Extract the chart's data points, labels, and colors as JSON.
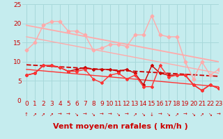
{
  "bg_color": "#c5ecee",
  "grid_color": "#a8d8da",
  "xlabel": "Vent moyen/en rafales ( km/h )",
  "xlim": [
    -0.5,
    23
  ],
  "ylim": [
    0,
    25
  ],
  "yticks": [
    0,
    5,
    10,
    15,
    20,
    25
  ],
  "xticks": [
    0,
    1,
    2,
    3,
    4,
    5,
    6,
    7,
    8,
    9,
    10,
    11,
    12,
    13,
    14,
    15,
    16,
    17,
    18,
    19,
    20,
    21,
    22,
    23
  ],
  "x": [
    0,
    1,
    2,
    3,
    4,
    5,
    6,
    7,
    8,
    9,
    10,
    11,
    12,
    13,
    14,
    15,
    16,
    17,
    18,
    19,
    20,
    21,
    22,
    23
  ],
  "line1_y": [
    13,
    15,
    19.5,
    20.5,
    20.5,
    18,
    18,
    17,
    13,
    13.5,
    14.5,
    14.5,
    14,
    17,
    17,
    22,
    17,
    16.5,
    16.5,
    10,
    5.5,
    10,
    6.5,
    8
  ],
  "line1_color": "#ffaaaa",
  "line1_lw": 1.0,
  "line1_ms": 2.5,
  "trend1_x": [
    0,
    23
  ],
  "trend1_y": [
    19.5,
    10.0
  ],
  "trend1_color": "#ffaaaa",
  "trend1_lw": 1.3,
  "trend2_x": [
    0,
    23
  ],
  "trend2_y": [
    16.5,
    7.0
  ],
  "trend2_color": "#ffaaaa",
  "trend2_lw": 1.0,
  "line3_y": [
    6.5,
    7.0,
    9.0,
    9.0,
    8.5,
    7.5,
    8.0,
    8.5,
    8.0,
    8.0,
    8.0,
    7.5,
    8.0,
    7.0,
    4.0,
    9.0,
    7.0,
    6.5,
    6.5,
    6.5,
    4.0,
    2.5,
    4.0,
    3.0
  ],
  "line3_color": "#cc0000",
  "line3_lw": 1.0,
  "line3_ms": 2.0,
  "line4_y": [
    6.5,
    7.0,
    9.0,
    9.0,
    8.5,
    7.5,
    7.5,
    8.0,
    5.5,
    4.5,
    6.5,
    7.0,
    5.5,
    6.5,
    3.5,
    3.5,
    9.0,
    6.0,
    6.5,
    6.5,
    4.0,
    2.5,
    4.0,
    3.0
  ],
  "line4_color": "#ff3333",
  "line4_lw": 1.0,
  "line4_ms": 2.0,
  "trend3_x": [
    0,
    23
  ],
  "trend3_y": [
    9.2,
    6.2
  ],
  "trend3_color": "#cc0000",
  "trend3_lw": 1.3,
  "trend4_x": [
    0,
    23
  ],
  "trend4_y": [
    8.0,
    3.5
  ],
  "trend4_color": "#ff3333",
  "trend4_lw": 1.0,
  "arrow_chars": [
    "↑",
    "↗",
    "↗",
    "↗",
    "→",
    "→",
    "↘",
    "→",
    "↘",
    "→",
    "→",
    "↘",
    "→",
    "↗",
    "↘",
    "↓",
    "→",
    "↘",
    "↗",
    "→",
    "↘",
    "↗",
    "↘",
    "→"
  ],
  "arrow_color": "#cc0000",
  "xlabel_color": "#cc0000",
  "xlabel_fontsize": 8,
  "tick_label_color": "#cc0000",
  "tick_fontsize": 6.5
}
